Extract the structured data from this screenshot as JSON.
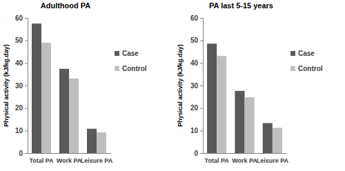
{
  "chart_data": [
    {
      "type": "bar",
      "title": "Adulthood PA",
      "y_label": "Physical activity (kJ/kg.day)",
      "categories": [
        "Total PA",
        "Work PA",
        "Leisure PA"
      ],
      "series": [
        {
          "name": "Case",
          "color": "#595959",
          "values": [
            57.5,
            37.4,
            10.8
          ]
        },
        {
          "name": "Control",
          "color": "#bfbfbf",
          "values": [
            49,
            33.1,
            9.2
          ]
        }
      ],
      "ylim": [
        0,
        60
      ],
      "yticks": [
        0,
        10,
        20,
        30,
        40,
        50,
        60
      ],
      "grid": false,
      "legend": "right"
    },
    {
      "type": "bar",
      "title": "PA last 5-15 years",
      "y_label": "Physical activity (kJ/kg.day)",
      "categories": [
        "Total PA",
        "Work PA",
        "Leisure PA"
      ],
      "series": [
        {
          "name": "Case",
          "color": "#595959",
          "values": [
            48.6,
            27.6,
            13.3
          ]
        },
        {
          "name": "Control",
          "color": "#bfbfbf",
          "values": [
            43.1,
            24.8,
            11.2
          ]
        }
      ],
      "ylim": [
        0,
        60
      ],
      "yticks": [
        0,
        10,
        20,
        30,
        40,
        50,
        60
      ],
      "grid": false,
      "legend": "right"
    }
  ]
}
